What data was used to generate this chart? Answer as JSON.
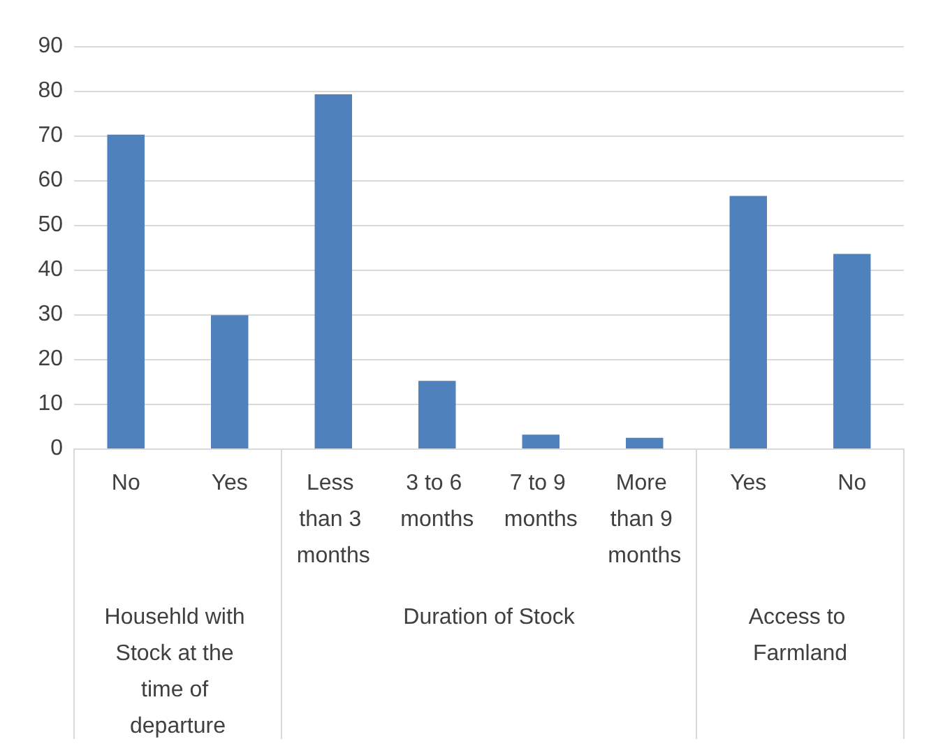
{
  "chart_data": {
    "type": "bar",
    "categories": [
      "No",
      "Yes",
      "Less than 3 months",
      "3 to 6 months",
      "7 to 9 months",
      "More than 9 months",
      "Yes",
      "No"
    ],
    "values": [
      70.2,
      29.8,
      79.2,
      15.1,
      3.1,
      2.4,
      56.5,
      43.5
    ],
    "color": "#4f81bd",
    "ylim": [
      0,
      90
    ],
    "yticks": [
      0,
      10,
      20,
      30,
      40,
      50,
      60,
      70,
      80,
      90
    ],
    "grid": "y",
    "annotations": [
      "Househld with Stock at the time of departure",
      "Duration of Stock",
      "Access to Farmland"
    ]
  }
}
